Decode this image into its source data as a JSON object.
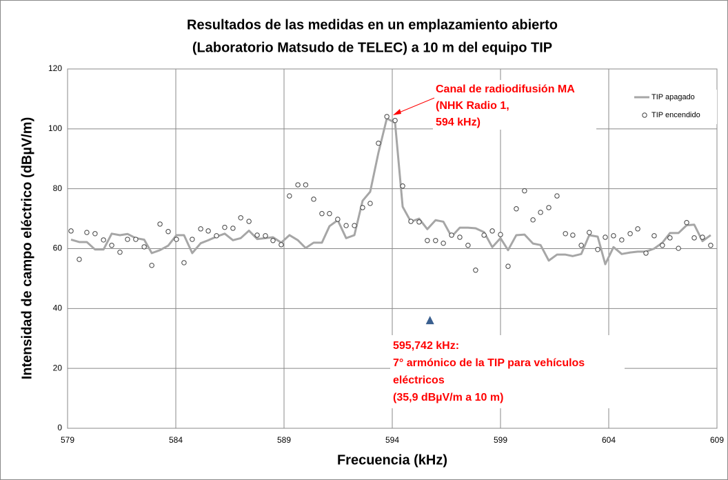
{
  "chart_data": {
    "type": "line_scatter",
    "title": [
      "Resultados de las medidas en un emplazamiento abierto",
      "(Laboratorio Matsudo de TELEC) a 10 m del equipo TIP"
    ],
    "x_label": "Frecuencia (kHz)",
    "y_label": "Intensidad de campo eléctrico (dBµV/m)",
    "xlim": [
      579,
      609
    ],
    "xticks": [
      579,
      584,
      589,
      594,
      599,
      604,
      609
    ],
    "ylim": [
      0,
      120
    ],
    "yticks": [
      0,
      20,
      40,
      60,
      80,
      100,
      120
    ],
    "grid": true,
    "legend": "top-right",
    "x": [
      579.16,
      579.54,
      579.89,
      580.27,
      580.66,
      581.04,
      581.42,
      581.77,
      582.15,
      582.54,
      582.89,
      583.27,
      583.65,
      584.03,
      584.38,
      584.76,
      585.15,
      585.5,
      585.88,
      586.26,
      586.64,
      587.0,
      587.38,
      587.76,
      588.14,
      588.49,
      588.87,
      589.25,
      589.64,
      590.0,
      590.37,
      590.75,
      591.1,
      591.48,
      591.87,
      592.25,
      592.63,
      592.98,
      593.36,
      593.75,
      594.13,
      594.48,
      594.86,
      595.24,
      595.62,
      596.0,
      596.36,
      596.74,
      597.12,
      597.5,
      597.85,
      598.24,
      598.62,
      599.0,
      599.35,
      599.73,
      600.11,
      600.5,
      600.85,
      601.23,
      601.61,
      602.0,
      602.34,
      602.73,
      603.1,
      603.49,
      603.84,
      604.22,
      604.6,
      604.99,
      605.34,
      605.72,
      606.1,
      606.48,
      606.83,
      607.22,
      607.6,
      607.95,
      608.33,
      608.71
    ],
    "series": [
      {
        "name": "TIP apagado",
        "type": "line",
        "color": "#a6a6a6",
        "values": [
          63,
          62.2,
          62.2,
          59.7,
          59.7,
          65,
          64.5,
          64.9,
          63.5,
          63,
          58.5,
          59.5,
          61,
          64.5,
          64.5,
          58.5,
          61.8,
          62.8,
          64,
          65,
          62.8,
          63.5,
          66,
          63.2,
          63.5,
          63.8,
          62,
          64.5,
          62.8,
          60.2,
          62,
          62,
          67.5,
          69.5,
          63.5,
          64.5,
          76,
          79,
          92,
          103.5,
          102,
          74,
          69,
          70,
          66.5,
          69.5,
          69,
          64,
          67,
          67,
          66.8,
          65.5,
          60.5,
          63.5,
          59.5,
          64.5,
          64.7,
          61.7,
          61.2,
          56,
          58,
          58,
          57.5,
          58.2,
          64.5,
          64,
          54.8,
          60.5,
          58.2,
          58.7,
          59,
          59,
          60,
          62,
          65.2,
          65.2,
          67.8,
          68,
          62.5,
          64.5
        ]
      },
      {
        "name": "TIP encendido",
        "type": "scatter",
        "color": "#404040",
        "values": [
          65.9,
          56.4,
          65.4,
          65.0,
          62.9,
          61.1,
          58.8,
          63.1,
          63.1,
          60.6,
          54.4,
          68.2,
          65.7,
          63.1,
          55.3,
          63.1,
          66.6,
          65.9,
          64.3,
          67.1,
          66.8,
          70.3,
          69.1,
          64.5,
          64.3,
          62.7,
          61.3,
          77.6,
          81.3,
          81.3,
          76.5,
          71.7,
          71.7,
          69.8,
          67.7,
          67.7,
          73.7,
          75.1,
          95.2,
          104.1,
          102.8,
          80.9,
          69.1,
          68.9,
          62.7,
          62.7,
          61.8,
          64.5,
          63.8,
          61.1,
          52.8,
          64.5,
          65.9,
          64.7,
          54.1,
          73.3,
          79.3,
          69.6,
          72.1,
          73.7,
          77.6,
          65.0,
          64.5,
          61.1,
          65.4,
          59.7,
          63.8,
          64.3,
          62.9,
          65.0,
          66.6,
          58.5,
          64.3,
          61.1,
          63.6,
          60.1,
          68.7,
          63.6,
          63.8,
          61.1
        ]
      }
    ],
    "marker": {
      "x": 595.742,
      "y": 35.9,
      "color": "#3a5f8f"
    },
    "annotations": [
      {
        "lines": [
          "Canal de radiodifusión MA",
          "(NHK Radio 1,",
          "594 kHz)"
        ]
      },
      {
        "lines": [
          "595,742 kHz:",
          "7° armónico de la TIP para vehículos",
          "eléctricos",
          "(35,9 dBµV/m a 10 m)"
        ]
      }
    ]
  }
}
